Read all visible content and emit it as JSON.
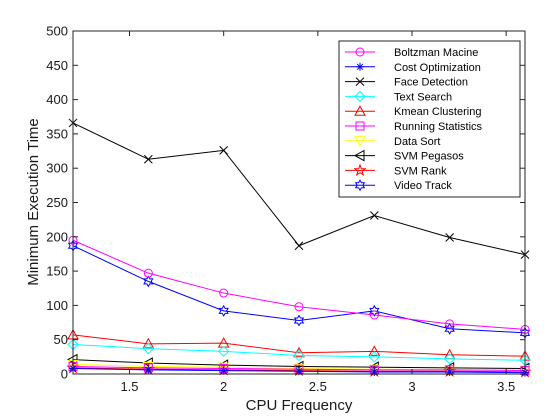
{
  "chart_data": {
    "type": "line",
    "title": "",
    "xlabel": "CPU Frequency",
    "ylabel": "Minimum Execution Time",
    "xlim": [
      1.2,
      3.6
    ],
    "ylim": [
      0,
      500
    ],
    "xticks": [
      1.5,
      2,
      2.5,
      3,
      3.5
    ],
    "xtick_labels": [
      "1.5",
      "2",
      "2.5",
      "3",
      "3.5"
    ],
    "yticks": [
      0,
      50,
      100,
      150,
      200,
      250,
      300,
      350,
      400,
      450,
      500
    ],
    "ytick_labels": [
      "0",
      "50",
      "100",
      "150",
      "200",
      "250",
      "300",
      "350",
      "400",
      "450",
      "500"
    ],
    "grid": false,
    "legend_position": "top-right",
    "x": [
      1.2,
      1.6,
      2.0,
      2.4,
      2.8,
      3.2,
      3.6
    ],
    "series": [
      {
        "name": "Boltzman Macine",
        "color": "#ff00ff",
        "marker": "circle",
        "values": [
          195,
          147,
          118,
          98,
          86,
          73,
          65
        ]
      },
      {
        "name": "Cost Optimization",
        "color": "#0000ff",
        "marker": "asterisk",
        "values": [
          8,
          6,
          5,
          4,
          3,
          3,
          2
        ]
      },
      {
        "name": "Face Detection",
        "color": "#000000",
        "marker": "x",
        "values": [
          366,
          313,
          326,
          187,
          231,
          199,
          174
        ]
      },
      {
        "name": "Text Search",
        "color": "#00ffff",
        "marker": "diamond",
        "values": [
          43,
          37,
          33,
          27,
          25,
          22,
          20
        ]
      },
      {
        "name": "Kmean Clustering",
        "color": "#ff0000",
        "marker": "triangle-up",
        "values": [
          57,
          44,
          45,
          31,
          33,
          28,
          26
        ]
      },
      {
        "name": "Running Statistics",
        "color": "#ff00ff",
        "marker": "square",
        "values": [
          11,
          9,
          8,
          7,
          6,
          6,
          5
        ]
      },
      {
        "name": "Data Sort",
        "color": "#ffff00",
        "marker": "triangle-down",
        "values": [
          14,
          11,
          10,
          8,
          7,
          6,
          6
        ]
      },
      {
        "name": "SVM Pegasos",
        "color": "#000000",
        "marker": "triangle-left",
        "values": [
          21,
          16,
          13,
          11,
          10,
          9,
          8
        ]
      },
      {
        "name": "SVM Rank",
        "color": "#ff0000",
        "marker": "pentagram",
        "values": [
          9,
          7,
          6,
          5,
          4,
          4,
          3
        ]
      },
      {
        "name": "Video Track",
        "color": "#0000ff",
        "marker": "hexagram",
        "values": [
          187,
          135,
          92,
          78,
          92,
          66,
          60
        ]
      }
    ]
  }
}
